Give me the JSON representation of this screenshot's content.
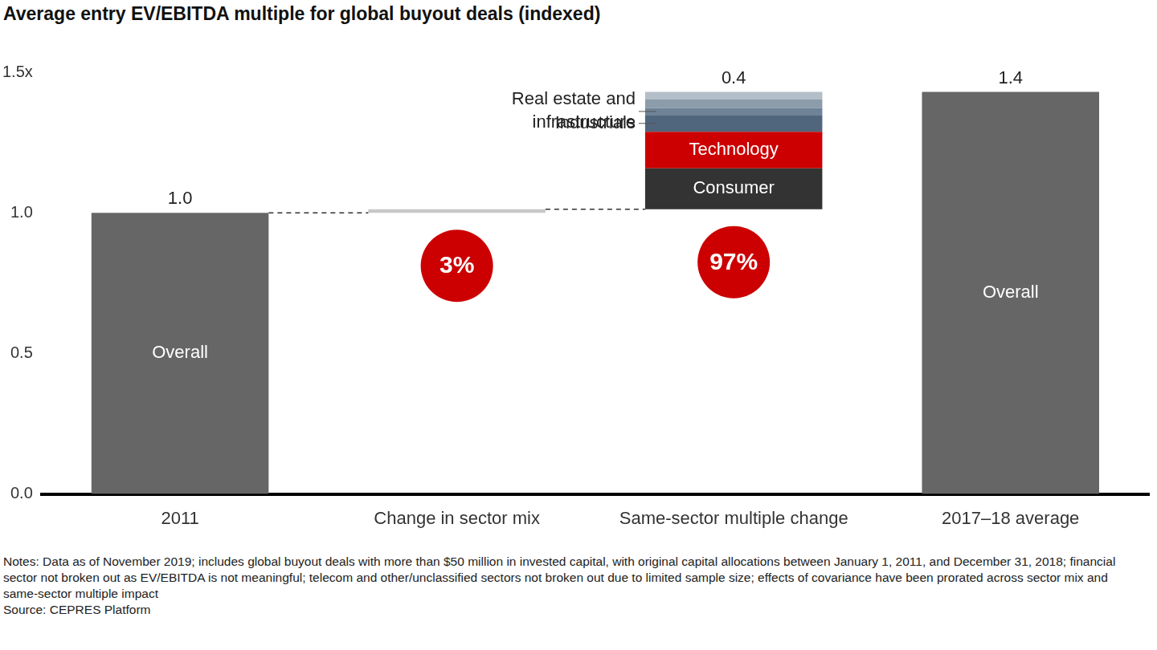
{
  "chart_data": {
    "type": "waterfall",
    "title": "Average entry EV/EBITDA multiple for global buyout deals (indexed)",
    "categories": [
      "2011",
      "Change in sector mix",
      "Same-sector multiple change",
      "2017–18 average"
    ],
    "ylim": [
      0,
      1.5
    ],
    "yticks": [
      {
        "value": 0,
        "label": "0.0"
      },
      {
        "value": 0.5,
        "label": "0.5"
      },
      {
        "value": 1,
        "label": "1.0"
      },
      {
        "value": 1.5,
        "label": "1.5x"
      }
    ],
    "grid": false,
    "legend": false,
    "data_labels": true,
    "series": [
      {
        "name": "Overall",
        "color": "#666666",
        "values": [
          1.0,
          null,
          null,
          1.43
        ],
        "value_labels": [
          "1.0",
          null,
          null,
          "1.4"
        ]
      },
      {
        "name": null,
        "color": "#c8c8c8",
        "values": [
          null,
          0.013,
          null,
          null
        ]
      },
      {
        "name": "Consumer",
        "color": "#333333",
        "values": [
          null,
          null,
          0.145,
          null
        ]
      },
      {
        "name": "Technology",
        "color": "#cc0000",
        "values": [
          null,
          null,
          0.13,
          null
        ]
      },
      {
        "name": "Industrials",
        "color": "#50667d",
        "values": [
          null,
          null,
          0.06,
          null
        ]
      },
      {
        "name": "Real estate and infrastructure",
        "color": "#6f8397",
        "values": [
          null,
          null,
          0.025,
          null
        ]
      },
      {
        "name": null,
        "color": "#8d9cab",
        "values": [
          null,
          null,
          0.03,
          null
        ]
      },
      {
        "name": null,
        "color": "#b3bec8",
        "values": [
          null,
          null,
          0.027,
          null
        ]
      }
    ],
    "stack_total_labels": [
      null,
      null,
      {
        "value": 0.417,
        "label": "0.4"
      },
      null
    ],
    "shares": [
      null,
      3,
      97,
      null
    ],
    "share_labels": [
      null,
      "3%",
      "97%",
      null
    ],
    "notes": "Notes: Data as of November 2019; includes global buyout deals with more than $50 million in invested capital, with original capital allocations between January 1, 2011, and December 31, 2018; financial sector not broken out as EV/EBITDA is not meaningful; telecom and other/unclassified sectors not broken out due to limited sample size; effects of covariance have been prorated across sector mix and same-sector multiple impact",
    "source": "Source: CEPRES Platform"
  }
}
